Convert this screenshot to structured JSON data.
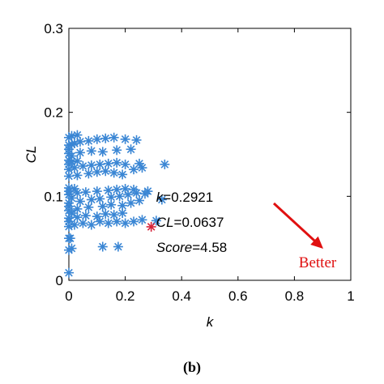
{
  "chart_data": {
    "type": "scatter",
    "xlabel": "k",
    "ylabel": "CL",
    "xlim": [
      0,
      1
    ],
    "ylim": [
      0,
      0.3
    ],
    "xticks": [
      "0",
      "0.2",
      "0.4",
      "0.6",
      "0.8",
      "1"
    ],
    "yticks": [
      "0",
      "0.1",
      "0.2",
      "0.3"
    ],
    "grid": false,
    "series": [
      {
        "color": "#3a86d4",
        "marker": "asterisk",
        "points": [
          [
            0.0,
            0.009
          ],
          [
            0.0,
            0.036
          ],
          [
            0.01,
            0.038
          ],
          [
            0.0,
            0.05
          ],
          [
            0.005,
            0.05
          ],
          [
            0.12,
            0.04
          ],
          [
            0.175,
            0.04
          ],
          [
            0.0,
            0.064
          ],
          [
            0.02,
            0.066
          ],
          [
            0.05,
            0.068
          ],
          [
            0.08,
            0.066
          ],
          [
            0.11,
            0.07
          ],
          [
            0.14,
            0.068
          ],
          [
            0.17,
            0.07
          ],
          [
            0.2,
            0.068
          ],
          [
            0.23,
            0.07
          ],
          [
            0.26,
            0.072
          ],
          [
            0.31,
            0.071
          ],
          [
            0.0,
            0.074
          ],
          [
            0.03,
            0.075
          ],
          [
            0.06,
            0.077
          ],
          [
            0.1,
            0.076
          ],
          [
            0.13,
            0.079
          ],
          [
            0.16,
            0.078
          ],
          [
            0.19,
            0.08
          ],
          [
            0.0,
            0.083
          ],
          [
            0.03,
            0.085
          ],
          [
            0.07,
            0.087
          ],
          [
            0.12,
            0.088
          ],
          [
            0.15,
            0.09
          ],
          [
            0.19,
            0.089
          ],
          [
            0.22,
            0.092
          ],
          [
            0.25,
            0.095
          ],
          [
            0.0,
            0.092
          ],
          [
            0.04,
            0.094
          ],
          [
            0.08,
            0.096
          ],
          [
            0.11,
            0.097
          ],
          [
            0.15,
            0.099
          ],
          [
            0.18,
            0.1
          ],
          [
            0.21,
            0.102
          ],
          [
            0.24,
            0.104
          ],
          [
            0.27,
            0.103
          ],
          [
            0.33,
            0.096
          ],
          [
            0.0,
            0.102
          ],
          [
            0.03,
            0.104
          ],
          [
            0.06,
            0.105
          ],
          [
            0.1,
            0.106
          ],
          [
            0.14,
            0.107
          ],
          [
            0.17,
            0.108
          ],
          [
            0.2,
            0.109
          ],
          [
            0.23,
            0.108
          ],
          [
            0.28,
            0.106
          ],
          [
            0.0,
            0.11
          ],
          [
            0.02,
            0.109
          ],
          [
            0.0,
            0.106
          ],
          [
            0.01,
            0.098
          ],
          [
            0.0,
            0.088
          ],
          [
            0.01,
            0.08
          ],
          [
            0.0,
            0.07
          ],
          [
            0.0,
            0.124
          ],
          [
            0.03,
            0.125
          ],
          [
            0.07,
            0.127
          ],
          [
            0.1,
            0.129
          ],
          [
            0.13,
            0.13
          ],
          [
            0.16,
            0.128
          ],
          [
            0.19,
            0.126
          ],
          [
            0.23,
            0.132
          ],
          [
            0.26,
            0.134
          ],
          [
            0.0,
            0.132
          ],
          [
            0.02,
            0.134
          ],
          [
            0.05,
            0.136
          ],
          [
            0.08,
            0.137
          ],
          [
            0.11,
            0.138
          ],
          [
            0.14,
            0.139
          ],
          [
            0.17,
            0.14
          ],
          [
            0.2,
            0.138
          ],
          [
            0.25,
            0.139
          ],
          [
            0.34,
            0.138
          ],
          [
            0.0,
            0.138
          ],
          [
            0.01,
            0.141
          ],
          [
            0.0,
            0.143
          ],
          [
            0.03,
            0.142
          ],
          [
            0.0,
            0.151
          ],
          [
            0.04,
            0.152
          ],
          [
            0.08,
            0.154
          ],
          [
            0.12,
            0.153
          ],
          [
            0.17,
            0.155
          ],
          [
            0.22,
            0.156
          ],
          [
            0.0,
            0.161
          ],
          [
            0.01,
            0.162
          ],
          [
            0.02,
            0.163
          ],
          [
            0.04,
            0.165
          ],
          [
            0.07,
            0.166
          ],
          [
            0.1,
            0.168
          ],
          [
            0.13,
            0.169
          ],
          [
            0.16,
            0.17
          ],
          [
            0.2,
            0.168
          ],
          [
            0.24,
            0.167
          ],
          [
            0.0,
            0.17
          ],
          [
            0.01,
            0.172
          ],
          [
            0.03,
            0.173
          ],
          [
            0.0,
            0.156
          ],
          [
            0.01,
            0.148
          ]
        ]
      }
    ],
    "highlight": {
      "x": 0.2921,
      "y": 0.0637,
      "color": "#d6243a",
      "marker": "asterisk",
      "labels": [
        {
          "italic": "k",
          "rest": "=0.2921"
        },
        {
          "italic": "CL",
          "rest": "=0.0637"
        },
        {
          "italic": "Score",
          "rest": "=4.58"
        }
      ]
    },
    "annotation": {
      "text": "Better",
      "color": "#e01010"
    }
  },
  "caption": "(b)"
}
